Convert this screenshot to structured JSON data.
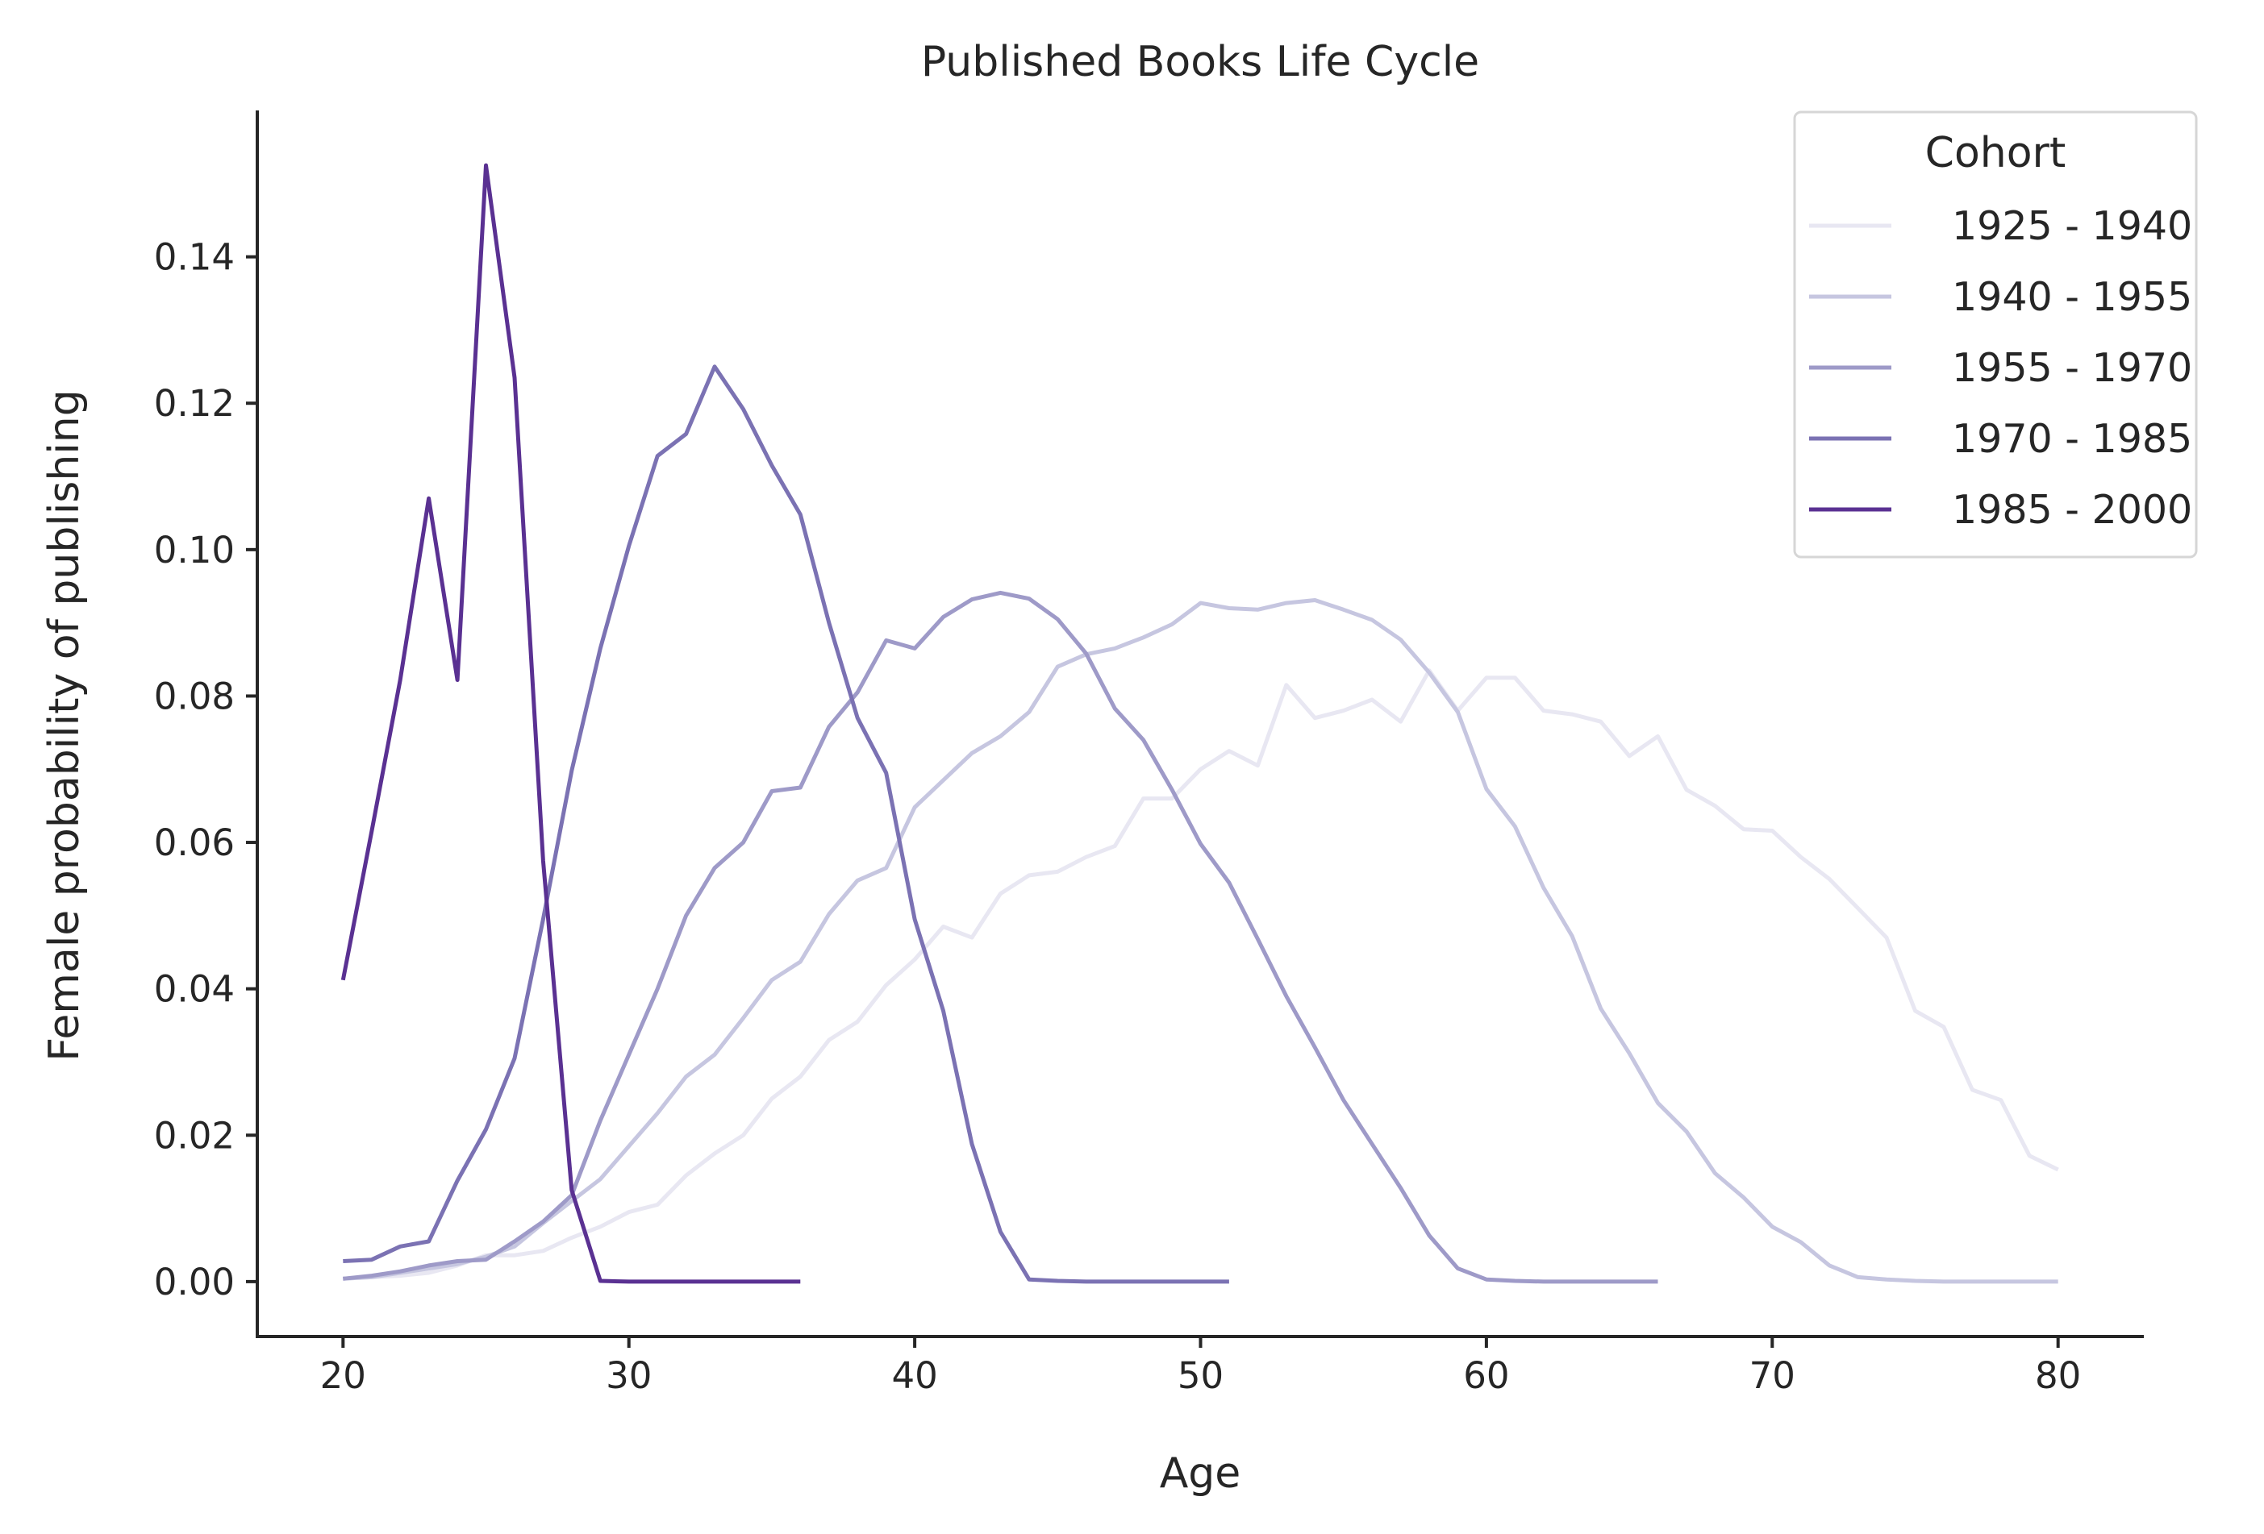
{
  "chart_data": {
    "type": "line",
    "title": "Published Books Life Cycle",
    "xlabel": "Age",
    "ylabel": "Female probability of publishing",
    "xlim": [
      17,
      83
    ],
    "ylim": [
      -0.0075,
      0.16
    ],
    "xticks": [
      20,
      30,
      40,
      50,
      60,
      70,
      80
    ],
    "yticks": [
      0.0,
      0.02,
      0.04,
      0.06,
      0.08,
      0.1,
      0.12,
      0.14
    ],
    "ytick_labels": [
      "0.00",
      "0.02",
      "0.04",
      "0.06",
      "0.08",
      "0.10",
      "0.12",
      "0.14"
    ],
    "xtick_labels": [
      "20",
      "30",
      "40",
      "50",
      "60",
      "70",
      "80"
    ],
    "grid": false,
    "legend": {
      "title": "Cohort",
      "placement": "top-right"
    },
    "series": [
      {
        "name": "1925 - 1940",
        "color": "#e8e7f2",
        "x_start": 20,
        "values": [
          0.0004,
          0.0006,
          0.0008,
          0.0012,
          0.0022,
          0.0036,
          0.0036,
          0.0042,
          0.006,
          0.0075,
          0.0095,
          0.0105,
          0.0145,
          0.0175,
          0.02,
          0.025,
          0.028,
          0.033,
          0.0355,
          0.0405,
          0.044,
          0.0485,
          0.047,
          0.053,
          0.0555,
          0.056,
          0.058,
          0.0595,
          0.066,
          0.066,
          0.07,
          0.0725,
          0.0705,
          0.0815,
          0.077,
          0.078,
          0.0795,
          0.0765,
          0.0835,
          0.078,
          0.0825,
          0.0825,
          0.078,
          0.0775,
          0.0765,
          0.0718,
          0.0745,
          0.0672,
          0.065,
          0.0618,
          0.0616,
          0.058,
          0.055,
          0.051,
          0.047,
          0.037,
          0.0348,
          0.0262,
          0.0248,
          0.0172,
          0.0153
        ]
      },
      {
        "name": "1940 - 1955",
        "color": "#c6c6e0",
        "x_start": 20,
        "values": [
          0.0004,
          0.0006,
          0.0012,
          0.0018,
          0.0024,
          0.0034,
          0.0048,
          0.008,
          0.011,
          0.014,
          0.0185,
          0.023,
          0.028,
          0.031,
          0.036,
          0.0412,
          0.0437,
          0.0502,
          0.0548,
          0.0565,
          0.0648,
          0.0685,
          0.0722,
          0.0745,
          0.0778,
          0.084,
          0.0857,
          0.0865,
          0.088,
          0.0898,
          0.0927,
          0.092,
          0.0918,
          0.0927,
          0.0931,
          0.0918,
          0.0904,
          0.0877,
          0.0832,
          0.0778,
          0.0673,
          0.0622,
          0.0538,
          0.0472,
          0.0373,
          0.0312,
          0.0244,
          0.0205,
          0.0148,
          0.0115,
          0.0075,
          0.0054,
          0.0022,
          0.0006,
          0.0003,
          0.0001,
          0,
          0,
          0,
          0,
          0
        ]
      },
      {
        "name": "1955 - 1970",
        "color": "#9e9ac8",
        "x_start": 20,
        "values": [
          0.0004,
          0.0008,
          0.0014,
          0.0022,
          0.0028,
          0.003,
          0.0055,
          0.0082,
          0.0118,
          0.022,
          0.031,
          0.04,
          0.05,
          0.0565,
          0.06,
          0.067,
          0.0675,
          0.0758,
          0.0805,
          0.0876,
          0.0865,
          0.0908,
          0.0932,
          0.0941,
          0.0933,
          0.0905,
          0.0858,
          0.0783,
          0.074,
          0.0672,
          0.0598,
          0.0545,
          0.0468,
          0.039,
          0.032,
          0.0248,
          0.0188,
          0.0128,
          0.0063,
          0.0018,
          0.0003,
          0.0001,
          0,
          0,
          0,
          0,
          0
        ]
      },
      {
        "name": "1970 - 1985",
        "color": "#7b72b3",
        "x_start": 20,
        "values": [
          0.0028,
          0.003,
          0.0048,
          0.0055,
          0.0138,
          0.0208,
          0.0305,
          0.0495,
          0.0698,
          0.0865,
          0.1005,
          0.1128,
          0.1158,
          0.125,
          0.1192,
          0.1115,
          0.1048,
          0.09,
          0.077,
          0.0695,
          0.0495,
          0.037,
          0.0188,
          0.0068,
          0.0003,
          0.0001,
          0,
          0,
          0,
          0,
          0,
          0
        ]
      },
      {
        "name": "1985 - 2000",
        "color": "#5a3192",
        "x_start": 20,
        "values": [
          0.0412,
          0.0615,
          0.0822,
          0.107,
          0.0822,
          0.1525,
          0.1235,
          0.0575,
          0.0125,
          0.0001,
          0,
          0,
          0,
          0,
          0,
          0,
          0
        ]
      }
    ]
  }
}
